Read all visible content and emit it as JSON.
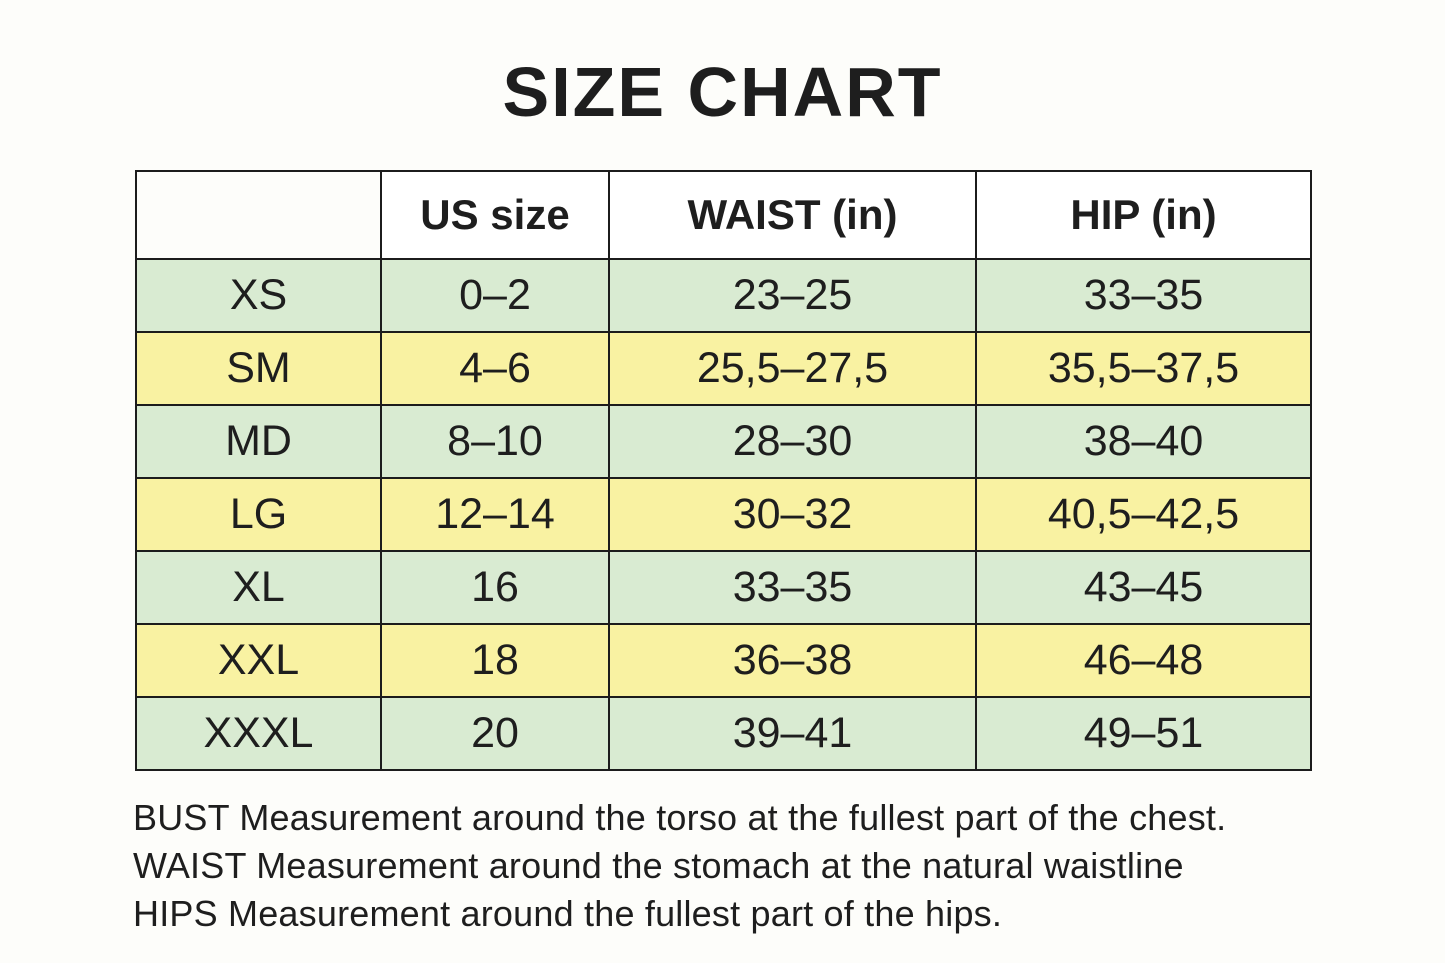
{
  "page": {
    "title": "SIZE CHART",
    "background": "#fdfdfa"
  },
  "chart_data": {
    "type": "table",
    "title": "SIZE CHART",
    "columns": [
      "US size",
      "WAIST (in)",
      "HIP (in)"
    ],
    "rows": [
      {
        "size": "XS",
        "us_size": "0–2",
        "waist_in": "23–25",
        "hip_in": "33–35",
        "row_color": "green"
      },
      {
        "size": "SM",
        "us_size": "4–6",
        "waist_in": "25,5–27,5",
        "hip_in": "35,5–37,5",
        "row_color": "yellow"
      },
      {
        "size": "MD",
        "us_size": "8–10",
        "waist_in": "28–30",
        "hip_in": "38–40",
        "row_color": "green"
      },
      {
        "size": "LG",
        "us_size": "12–14",
        "waist_in": "30–32",
        "hip_in": "40,5–42,5",
        "row_color": "yellow"
      },
      {
        "size": "XL",
        "us_size": "16",
        "waist_in": "33–35",
        "hip_in": "43–45",
        "row_color": "green"
      },
      {
        "size": "XXL",
        "us_size": "18",
        "waist_in": "36–38",
        "hip_in": "46–48",
        "row_color": "yellow"
      },
      {
        "size": "XXXL",
        "us_size": "20",
        "waist_in": "39–41",
        "hip_in": "49–51",
        "row_color": "green"
      }
    ],
    "colors": {
      "row_green": "#d9ebd2",
      "row_yellow": "#f9f2a2",
      "header_background": "#ffffff",
      "border": "#1c1c1c",
      "text": "#1e1e1e"
    },
    "layout": {
      "legend_position": "none",
      "grid": "all-borders"
    }
  },
  "notes": [
    "BUST Measurement around the torso at the fullest part of the chest.",
    "WAIST Measurement around the stomach at the natural waistline",
    "HIPS Measurement around the fullest part of the hips."
  ]
}
